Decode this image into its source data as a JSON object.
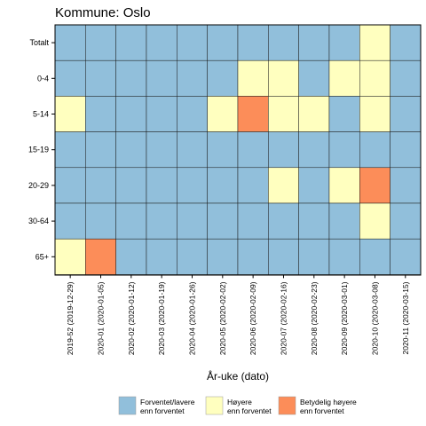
{
  "chart_data": {
    "type": "heatmap",
    "title": "Kommune: Oslo",
    "xlabel": "År-uke (dato)",
    "ylabel": "",
    "x": [
      "2019-52 (2019-12-29)",
      "2020-01 (2020-01-05)",
      "2020-02 (2020-01-12)",
      "2020-03 (2020-01-19)",
      "2020-04 (2020-01-26)",
      "2020-05 (2020-02-02)",
      "2020-06 (2020-02-09)",
      "2020-07 (2020-02-16)",
      "2020-08 (2020-02-23)",
      "2020-09 (2020-03-01)",
      "2020-10 (2020-03-08)",
      "2020-11 (2020-03-15)"
    ],
    "y": [
      "Totalt",
      "0-4",
      "5-14",
      "15-19",
      "20-29",
      "30-64",
      "65+"
    ],
    "levels": [
      {
        "name": "Forventet/lavere enn forventet",
        "lines": [
          "Forventet/lavere",
          "enn forventet"
        ],
        "color": "#91bfdb"
      },
      {
        "name": "Høyere enn forventet",
        "lines": [
          "Høyere",
          "enn forventet"
        ],
        "color": "#ffffbf"
      },
      {
        "name": "Betydelig høyere enn forventet",
        "lines": [
          "Betydelig høyere",
          "enn forventet"
        ],
        "color": "#fc8d59"
      }
    ],
    "values": [
      [
        0,
        0,
        0,
        0,
        0,
        0,
        0,
        0,
        0,
        0,
        1,
        0
      ],
      [
        0,
        0,
        0,
        0,
        0,
        0,
        1,
        1,
        0,
        1,
        1,
        0
      ],
      [
        1,
        0,
        0,
        0,
        0,
        1,
        2,
        1,
        1,
        0,
        1,
        0
      ],
      [
        0,
        0,
        0,
        0,
        0,
        0,
        0,
        0,
        0,
        0,
        0,
        0
      ],
      [
        0,
        0,
        0,
        0,
        0,
        0,
        0,
        1,
        0,
        1,
        2,
        0
      ],
      [
        0,
        0,
        0,
        0,
        0,
        0,
        0,
        0,
        0,
        0,
        1,
        0
      ],
      [
        1,
        2,
        0,
        0,
        0,
        0,
        0,
        0,
        0,
        0,
        0,
        0
      ]
    ],
    "legend": "bottom"
  }
}
